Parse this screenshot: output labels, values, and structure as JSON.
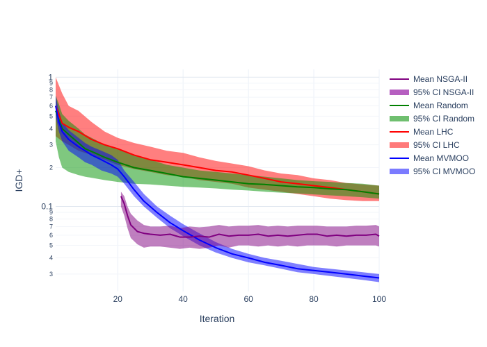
{
  "chart_data": {
    "type": "line",
    "xlabel": "Iteration",
    "ylabel": "IGD+",
    "x_axis": {
      "range": [
        1,
        100
      ],
      "ticks": [
        20,
        40,
        60,
        80,
        100
      ]
    },
    "y_axis": {
      "scale": "log",
      "range": [
        0.022,
        1.15
      ],
      "major_ticks": [
        {
          "value": 0.1,
          "label": "0.1"
        },
        {
          "value": 1,
          "label": "1"
        }
      ],
      "minor_ticks": [
        {
          "value": 0.03,
          "label": "3"
        },
        {
          "value": 0.04,
          "label": "4"
        },
        {
          "value": 0.05,
          "label": "5"
        },
        {
          "value": 0.06,
          "label": "6"
        },
        {
          "value": 0.07,
          "label": "7"
        },
        {
          "value": 0.08,
          "label": "8"
        },
        {
          "value": 0.09,
          "label": "9"
        },
        {
          "value": 0.2,
          "label": "2"
        },
        {
          "value": 0.3,
          "label": "3"
        },
        {
          "value": 0.4,
          "label": "4"
        },
        {
          "value": 0.5,
          "label": "5"
        },
        {
          "value": 0.6,
          "label": "6"
        },
        {
          "value": 0.7,
          "label": "7"
        },
        {
          "value": 0.8,
          "label": "8"
        },
        {
          "value": 0.9,
          "label": "9"
        }
      ]
    },
    "grid": true,
    "legend_position": "right",
    "legend": [
      {
        "label": "Mean NSGA-II",
        "kind": "line",
        "color": "#800080"
      },
      {
        "label": "95% CI NSGA-II",
        "kind": "band",
        "color": "#b65fc0"
      },
      {
        "label": "Mean Random",
        "kind": "line",
        "color": "#008000"
      },
      {
        "label": "95% CI Random",
        "kind": "band",
        "color": "#6fbf6f"
      },
      {
        "label": "Mean LHC",
        "kind": "line",
        "color": "#ff0000"
      },
      {
        "label": "95% CI LHC",
        "kind": "band",
        "color": "#ff7a7a"
      },
      {
        "label": "Mean MVMOO",
        "kind": "line",
        "color": "#0000ff"
      },
      {
        "label": "95% CI MVMOO",
        "kind": "band",
        "color": "#7b7bff"
      }
    ],
    "series": [
      {
        "name": "Mean LHC",
        "ci_name": "95% CI LHC",
        "color": "#ff0000",
        "band_color": "#ff0000",
        "band_opacity": 0.5,
        "x": [
          1,
          3,
          5,
          8,
          12,
          16,
          20,
          25,
          30,
          35,
          40,
          45,
          50,
          55,
          60,
          65,
          70,
          75,
          80,
          85,
          90,
          95,
          100
        ],
        "mean": [
          0.6,
          0.44,
          0.41,
          0.38,
          0.33,
          0.3,
          0.28,
          0.25,
          0.23,
          0.22,
          0.21,
          0.2,
          0.19,
          0.185,
          0.175,
          0.165,
          0.155,
          0.15,
          0.145,
          0.14,
          0.135,
          0.13,
          0.125
        ],
        "lower": [
          0.35,
          0.32,
          0.3,
          0.27,
          0.25,
          0.23,
          0.21,
          0.195,
          0.185,
          0.175,
          0.17,
          0.16,
          0.155,
          0.15,
          0.14,
          0.135,
          0.13,
          0.125,
          0.12,
          0.115,
          0.112,
          0.11,
          0.11
        ],
        "upper": [
          1.0,
          0.75,
          0.6,
          0.55,
          0.45,
          0.38,
          0.34,
          0.31,
          0.29,
          0.27,
          0.26,
          0.24,
          0.225,
          0.215,
          0.205,
          0.19,
          0.18,
          0.175,
          0.165,
          0.16,
          0.152,
          0.148,
          0.145
        ]
      },
      {
        "name": "Mean Random",
        "ci_name": "95% CI Random",
        "color": "#008000",
        "band_color": "#009100",
        "band_opacity": 0.5,
        "x": [
          1,
          2,
          3,
          5,
          8,
          10,
          13,
          16,
          20,
          25,
          30,
          35,
          40,
          45,
          50,
          55,
          60,
          65,
          70,
          75,
          80,
          85,
          90,
          95,
          100
        ],
        "mean": [
          0.55,
          0.47,
          0.4,
          0.36,
          0.31,
          0.28,
          0.26,
          0.24,
          0.22,
          0.2,
          0.19,
          0.18,
          0.17,
          0.165,
          0.16,
          0.155,
          0.15,
          0.148,
          0.145,
          0.142,
          0.14,
          0.137,
          0.135,
          0.13,
          0.125
        ],
        "lower": [
          0.32,
          0.24,
          0.2,
          0.185,
          0.175,
          0.17,
          0.165,
          0.16,
          0.155,
          0.15,
          0.148,
          0.145,
          0.142,
          0.14,
          0.138,
          0.135,
          0.133,
          0.13,
          0.128,
          0.126,
          0.124,
          0.122,
          0.12,
          0.118,
          0.115
        ],
        "upper": [
          0.72,
          0.62,
          0.52,
          0.46,
          0.4,
          0.36,
          0.33,
          0.3,
          0.28,
          0.25,
          0.23,
          0.21,
          0.2,
          0.19,
          0.185,
          0.18,
          0.175,
          0.17,
          0.165,
          0.16,
          0.157,
          0.155,
          0.152,
          0.15,
          0.145
        ]
      },
      {
        "name": "Mean MVMOO",
        "ci_name": "95% CI MVMOO",
        "color": "#0000ff",
        "band_color": "#0000ff",
        "band_opacity": 0.5,
        "x": [
          1,
          2,
          3,
          5,
          8,
          10,
          12,
          15,
          18,
          20,
          22,
          25,
          28,
          32,
          36,
          40,
          45,
          50,
          55,
          60,
          65,
          70,
          75,
          80,
          85,
          90,
          95,
          100
        ],
        "mean": [
          0.6,
          0.45,
          0.38,
          0.33,
          0.29,
          0.27,
          0.25,
          0.23,
          0.21,
          0.195,
          0.17,
          0.135,
          0.11,
          0.09,
          0.075,
          0.065,
          0.055,
          0.048,
          0.043,
          0.04,
          0.037,
          0.035,
          0.033,
          0.032,
          0.031,
          0.03,
          0.029,
          0.028
        ],
        "lower": [
          0.5,
          0.38,
          0.32,
          0.27,
          0.24,
          0.22,
          0.21,
          0.19,
          0.18,
          0.17,
          0.15,
          0.12,
          0.1,
          0.082,
          0.068,
          0.059,
          0.05,
          0.044,
          0.04,
          0.037,
          0.035,
          0.033,
          0.031,
          0.03,
          0.029,
          0.028,
          0.027,
          0.026
        ],
        "upper": [
          0.72,
          0.55,
          0.45,
          0.39,
          0.34,
          0.31,
          0.29,
          0.27,
          0.25,
          0.23,
          0.19,
          0.155,
          0.125,
          0.1,
          0.085,
          0.073,
          0.062,
          0.053,
          0.047,
          0.043,
          0.04,
          0.038,
          0.036,
          0.034,
          0.033,
          0.032,
          0.031,
          0.03
        ]
      },
      {
        "name": "Mean NSGA-II",
        "ci_name": "95% CI NSGA-II",
        "color": "#800080",
        "band_color": "#800080",
        "band_opacity": 0.5,
        "x": [
          21,
          22,
          23,
          24,
          26,
          28,
          30,
          33,
          36,
          39,
          42,
          45,
          48,
          51,
          54,
          57,
          60,
          63,
          66,
          69,
          72,
          75,
          78,
          81,
          84,
          87,
          90,
          93,
          96,
          99,
          100
        ],
        "mean": [
          0.12,
          0.105,
          0.085,
          0.072,
          0.064,
          0.062,
          0.061,
          0.06,
          0.061,
          0.058,
          0.058,
          0.059,
          0.058,
          0.061,
          0.059,
          0.06,
          0.06,
          0.061,
          0.059,
          0.06,
          0.059,
          0.06,
          0.061,
          0.061,
          0.059,
          0.06,
          0.059,
          0.06,
          0.06,
          0.061,
          0.059
        ],
        "lower": [
          0.1,
          0.085,
          0.068,
          0.057,
          0.051,
          0.048,
          0.049,
          0.049,
          0.048,
          0.047,
          0.048,
          0.047,
          0.048,
          0.05,
          0.048,
          0.05,
          0.05,
          0.049,
          0.05,
          0.049,
          0.05,
          0.049,
          0.05,
          0.05,
          0.05,
          0.049,
          0.05,
          0.05,
          0.05,
          0.05,
          0.049
        ],
        "upper": [
          0.13,
          0.12,
          0.1,
          0.088,
          0.078,
          0.072,
          0.07,
          0.07,
          0.071,
          0.068,
          0.07,
          0.069,
          0.07,
          0.072,
          0.07,
          0.071,
          0.071,
          0.072,
          0.07,
          0.071,
          0.07,
          0.071,
          0.071,
          0.071,
          0.07,
          0.07,
          0.07,
          0.071,
          0.071,
          0.072,
          0.07
        ]
      }
    ]
  }
}
